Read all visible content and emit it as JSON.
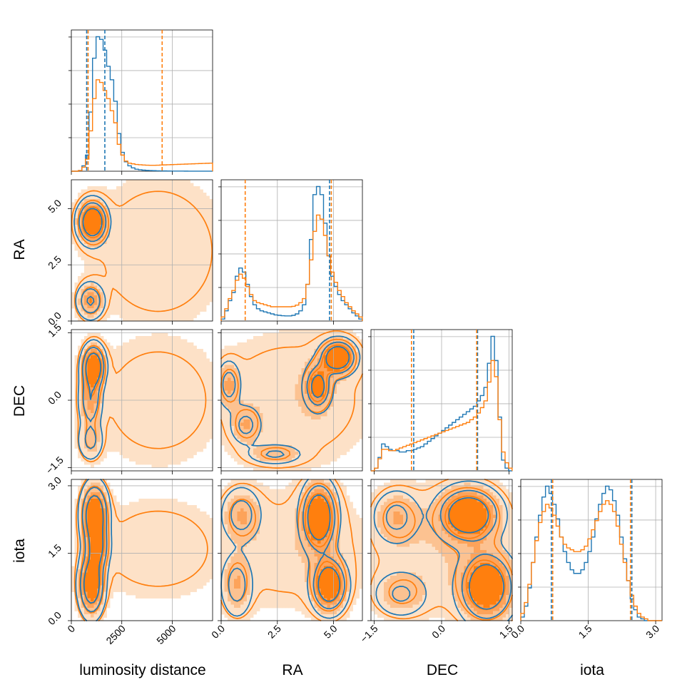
{
  "figure": {
    "type": "corner_plot",
    "colors": {
      "posterior_a": "#1f77b4",
      "posterior_b": "#ff7f0e",
      "fill_levels_b": [
        "#fde1c7",
        "#fcc291",
        "#fda35a",
        "#ff7f0e"
      ]
    }
  },
  "chart_data": [
    {
      "type": "histogram",
      "panel": "luminosity distance",
      "xlim": [
        0,
        7000
      ],
      "bin_width": 175,
      "series": [
        {
          "name": "",
          "color": "#1f77b4",
          "values": [
            0,
            0,
            0.5,
            4,
            12,
            44,
            84,
            100,
            98,
            90,
            78,
            68,
            52,
            28,
            14,
            7,
            4,
            2.5,
            1.5,
            1.1,
            0.8,
            0.6,
            0.5,
            0.4,
            0.3,
            0.25,
            0.2,
            0.15,
            0.1,
            0.1,
            0.1,
            0.08,
            0.06,
            0.05,
            0.05,
            0.04,
            0.03,
            0.03,
            0.02,
            0.02
          ]
        },
        {
          "name": "",
          "color": "#ff7f0e",
          "values": [
            0,
            0,
            0.5,
            3,
            9,
            30,
            54,
            68,
            66,
            60,
            54,
            45,
            36,
            20,
            12,
            7.5,
            6,
            5.5,
            5,
            4.8,
            4.6,
            4.5,
            4.4,
            4.4,
            4.5,
            4.6,
            4.7,
            4.8,
            4.9,
            5,
            5.1,
            5.2,
            5.3,
            5.4,
            5.5,
            5.6,
            5.7,
            5.8,
            5.9,
            6
          ]
        }
      ],
      "quantiles": [
        {
          "color": "#1f77b4",
          "values": [
            760,
            1660
          ]
        },
        {
          "color": "#ff7f0e",
          "values": [
            830,
            4500
          ]
        }
      ]
    },
    {
      "type": "histogram",
      "panel": "RA",
      "xlim": [
        0,
        6.283
      ],
      "bin_width": 0.157,
      "series": [
        {
          "name": "",
          "color": "#1f77b4",
          "values": [
            1,
            5,
            10,
            14,
            22,
            26,
            24,
            18,
            12,
            8,
            6,
            5,
            4.5,
            4,
            3.5,
            3,
            2.8,
            2.6,
            2.5,
            2.5,
            2.8,
            3.5,
            5,
            8,
            18,
            40,
            62,
            66,
            62,
            48,
            32,
            22,
            17,
            13,
            10,
            8,
            6,
            4,
            2.5,
            1
          ]
        },
        {
          "name": "",
          "color": "#ff7f0e",
          "values": [
            2,
            6,
            11,
            15,
            20,
            23,
            21,
            17,
            13,
            10,
            9,
            8.5,
            8,
            7.5,
            7,
            7,
            7,
            7,
            7,
            7,
            7.2,
            7.8,
            9,
            11,
            18,
            30,
            44,
            52,
            50,
            42,
            32,
            24,
            19,
            15,
            12,
            9,
            7,
            5,
            3.5,
            2
          ]
        }
      ],
      "quantiles": [
        {
          "color": "#1f77b4",
          "values": [
            4.82
          ]
        },
        {
          "color": "#ff7f0e",
          "values": [
            1.07,
            4.9
          ]
        }
      ]
    },
    {
      "type": "histogram",
      "panel": "DEC",
      "xlim": [
        -1.571,
        1.571
      ],
      "bin_width": 0.0785,
      "series": [
        {
          "name": "",
          "color": "#1f77b4",
          "values": [
            0,
            2,
            10,
            20,
            18,
            16,
            15,
            15,
            14,
            14,
            15,
            15,
            16,
            17,
            18,
            20,
            22,
            24,
            26,
            28,
            30,
            32,
            34,
            36,
            38,
            40,
            42,
            44,
            46,
            48,
            52,
            56,
            62,
            80,
            100,
            82,
            40,
            8,
            2,
            0
          ]
        },
        {
          "name": "",
          "color": "#ff7f0e",
          "values": [
            0,
            2,
            9,
            16,
            16,
            15,
            15,
            16,
            17,
            18,
            19,
            20,
            21,
            22,
            23,
            24,
            25,
            26,
            27,
            28,
            29,
            30,
            31,
            32,
            33,
            34,
            35,
            36,
            38,
            40,
            43,
            47,
            52,
            66,
            82,
            70,
            38,
            14,
            6,
            2
          ]
        }
      ],
      "quantiles": [
        {
          "color": "#1f77b4",
          "values": [
            -0.62,
            0.8
          ]
        },
        {
          "color": "#ff7f0e",
          "values": [
            -0.67,
            0.78
          ]
        }
      ]
    },
    {
      "type": "histogram",
      "panel": "iota",
      "xlim": [
        0,
        3.1416
      ],
      "bin_width": 0.0785,
      "series": [
        {
          "name": "",
          "color": "#1f77b4",
          "values": [
            2,
            8,
            18,
            32,
            46,
            58,
            68,
            74,
            70,
            64,
            56,
            46,
            38,
            32,
            28,
            26,
            26,
            28,
            32,
            38,
            46,
            56,
            64,
            70,
            74,
            72,
            66,
            58,
            46,
            34,
            22,
            12,
            6,
            2,
            1,
            0,
            0,
            0,
            0,
            0
          ]
        },
        {
          "name": "",
          "color": "#ff7f0e",
          "values": [
            4,
            10,
            20,
            32,
            44,
            54,
            60,
            64,
            62,
            58,
            52,
            46,
            42,
            40,
            39,
            38,
            38,
            39,
            41,
            45,
            50,
            55,
            60,
            64,
            66,
            64,
            60,
            52,
            42,
            32,
            22,
            14,
            8,
            4,
            2,
            1,
            0,
            0,
            0,
            0
          ]
        }
      ],
      "quantiles": [
        {
          "color": "#1f77b4",
          "values": [
            0.68,
            2.47
          ]
        },
        {
          "color": "#ff7f0e",
          "values": [
            0.71,
            2.44
          ]
        }
      ]
    },
    {
      "type": "contour",
      "x": "luminosity distance",
      "y": "RA",
      "xlim": [
        0,
        7000
      ],
      "ylim": [
        0,
        6.283
      ],
      "levels": [
        0.39,
        0.86,
        0.99
      ],
      "series": [
        {
          "name": "",
          "color": "#1f77b4",
          "modes": [
            {
              "x": 1050,
              "y": 4.4,
              "sx": 420,
              "sy": 0.55,
              "amp": 1.0
            },
            {
              "x": 950,
              "y": 0.9,
              "sx": 380,
              "sy": 0.45,
              "amp": 0.6
            }
          ]
        },
        {
          "name": "",
          "color": "#ff7f0e",
          "modes": [
            {
              "x": 1050,
              "y": 4.4,
              "sx": 450,
              "sy": 0.6,
              "amp": 1.0
            },
            {
              "x": 950,
              "y": 0.9,
              "sx": 400,
              "sy": 0.5,
              "amp": 0.55
            },
            {
              "x": 4300,
              "y": 3.1,
              "sx": 2200,
              "sy": 2.2,
              "amp": 0.22
            }
          ]
        }
      ]
    },
    {
      "type": "contour",
      "x": "luminosity distance",
      "y": "DEC",
      "xlim": [
        0,
        7000
      ],
      "ylim": [
        -1.571,
        1.571
      ],
      "levels": [
        0.39,
        0.86,
        0.99
      ],
      "series": [
        {
          "name": "",
          "color": "#1f77b4",
          "modes": [
            {
              "x": 1100,
              "y": 0.75,
              "sx": 330,
              "sy": 0.28,
              "amp": 1.0
            },
            {
              "x": 950,
              "y": 0.0,
              "sx": 330,
              "sy": 0.35,
              "amp": 0.55
            },
            {
              "x": 950,
              "y": -0.9,
              "sx": 350,
              "sy": 0.25,
              "amp": 0.4
            }
          ]
        },
        {
          "name": "",
          "color": "#ff7f0e",
          "modes": [
            {
              "x": 1100,
              "y": 0.75,
              "sx": 350,
              "sy": 0.3,
              "amp": 1.0
            },
            {
              "x": 950,
              "y": 0.0,
              "sx": 350,
              "sy": 0.38,
              "amp": 0.5
            },
            {
              "x": 950,
              "y": -0.9,
              "sx": 360,
              "sy": 0.28,
              "amp": 0.35
            },
            {
              "x": 4300,
              "y": 0.0,
              "sx": 2200,
              "sy": 1.0,
              "amp": 0.2
            }
          ]
        }
      ]
    },
    {
      "type": "contour",
      "x": "RA",
      "y": "DEC",
      "xlim": [
        0,
        6.283
      ],
      "ylim": [
        -1.571,
        1.571
      ],
      "levels": [
        0.39,
        0.86,
        0.99
      ],
      "series": [
        {
          "name": "",
          "color": "#1f77b4",
          "modes": [
            {
              "x": 5.2,
              "y": 0.95,
              "sx": 0.45,
              "sy": 0.22,
              "amp": 1.0
            },
            {
              "x": 4.3,
              "y": 0.3,
              "sx": 0.35,
              "sy": 0.3,
              "amp": 0.75
            },
            {
              "x": 0.35,
              "y": 0.35,
              "sx": 0.3,
              "sy": 0.3,
              "amp": 0.45
            },
            {
              "x": 1.1,
              "y": -0.55,
              "sx": 0.4,
              "sy": 0.25,
              "amp": 0.4
            },
            {
              "x": 2.4,
              "y": -1.2,
              "sx": 0.7,
              "sy": 0.13,
              "amp": 0.35
            }
          ]
        },
        {
          "name": "",
          "color": "#ff7f0e",
          "modes": [
            {
              "x": 5.2,
              "y": 0.95,
              "sx": 0.5,
              "sy": 0.25,
              "amp": 1.0
            },
            {
              "x": 4.3,
              "y": 0.3,
              "sx": 0.38,
              "sy": 0.32,
              "amp": 0.7
            },
            {
              "x": 0.35,
              "y": 0.35,
              "sx": 0.33,
              "sy": 0.32,
              "amp": 0.42
            },
            {
              "x": 1.1,
              "y": -0.55,
              "sx": 0.42,
              "sy": 0.27,
              "amp": 0.38
            },
            {
              "x": 2.4,
              "y": -1.2,
              "sx": 0.75,
              "sy": 0.15,
              "amp": 0.33
            },
            {
              "x": 3.1,
              "y": 0.0,
              "sx": 2.4,
              "sy": 1.0,
              "amp": 0.22
            }
          ]
        }
      ]
    },
    {
      "type": "contour",
      "x": "luminosity distance",
      "y": "iota",
      "xlim": [
        0,
        7000
      ],
      "ylim": [
        0,
        3.1416
      ],
      "levels": [
        0.39,
        0.86,
        0.99
      ],
      "series": [
        {
          "name": "",
          "color": "#1f77b4",
          "modes": [
            {
              "x": 1150,
              "y": 2.35,
              "sx": 380,
              "sy": 0.4,
              "amp": 1.0
            },
            {
              "x": 1000,
              "y": 0.8,
              "sx": 360,
              "sy": 0.4,
              "amp": 0.95
            },
            {
              "x": 1300,
              "y": 1.6,
              "sx": 350,
              "sy": 0.3,
              "amp": 0.55
            }
          ]
        },
        {
          "name": "",
          "color": "#ff7f0e",
          "modes": [
            {
              "x": 1150,
              "y": 2.35,
              "sx": 400,
              "sy": 0.42,
              "amp": 1.0
            },
            {
              "x": 1000,
              "y": 0.8,
              "sx": 380,
              "sy": 0.42,
              "amp": 0.95
            },
            {
              "x": 1300,
              "y": 1.6,
              "sx": 360,
              "sy": 0.32,
              "amp": 0.5
            },
            {
              "x": 4300,
              "y": 1.6,
              "sx": 2200,
              "sy": 0.75,
              "amp": 0.2
            }
          ]
        }
      ]
    },
    {
      "type": "contour",
      "x": "RA",
      "y": "iota",
      "xlim": [
        0,
        6.283
      ],
      "ylim": [
        0,
        3.1416
      ],
      "levels": [
        0.39,
        0.86,
        0.99
      ],
      "series": [
        {
          "name": "",
          "color": "#1f77b4",
          "modes": [
            {
              "x": 4.35,
              "y": 2.3,
              "sx": 0.45,
              "sy": 0.45,
              "amp": 1.0
            },
            {
              "x": 4.8,
              "y": 0.8,
              "sx": 0.45,
              "sy": 0.35,
              "amp": 0.95
            },
            {
              "x": 0.9,
              "y": 2.35,
              "sx": 0.5,
              "sy": 0.35,
              "amp": 0.45
            },
            {
              "x": 0.7,
              "y": 0.8,
              "sx": 0.4,
              "sy": 0.4,
              "amp": 0.45
            }
          ]
        },
        {
          "name": "",
          "color": "#ff7f0e",
          "modes": [
            {
              "x": 4.35,
              "y": 2.3,
              "sx": 0.5,
              "sy": 0.48,
              "amp": 1.0
            },
            {
              "x": 4.8,
              "y": 0.8,
              "sx": 0.48,
              "sy": 0.38,
              "amp": 0.95
            },
            {
              "x": 0.9,
              "y": 2.35,
              "sx": 0.55,
              "sy": 0.38,
              "amp": 0.42
            },
            {
              "x": 0.7,
              "y": 0.8,
              "sx": 0.42,
              "sy": 0.42,
              "amp": 0.42
            },
            {
              "x": 3.1,
              "y": 1.6,
              "sx": 2.4,
              "sy": 0.9,
              "amp": 0.2
            }
          ]
        }
      ]
    },
    {
      "type": "contour",
      "x": "DEC",
      "y": "iota",
      "xlim": [
        -1.571,
        1.571
      ],
      "ylim": [
        0,
        3.1416
      ],
      "levels": [
        0.39,
        0.86,
        0.99
      ],
      "series": [
        {
          "name": "",
          "color": "#1f77b4",
          "modes": [
            {
              "x": 0.6,
              "y": 2.35,
              "sx": 0.4,
              "sy": 0.35,
              "amp": 1.0
            },
            {
              "x": 1.0,
              "y": 0.75,
              "sx": 0.35,
              "sy": 0.45,
              "amp": 1.0
            },
            {
              "x": -1.0,
              "y": 2.3,
              "sx": 0.3,
              "sy": 0.35,
              "amp": 0.4
            },
            {
              "x": -0.9,
              "y": 0.6,
              "sx": 0.35,
              "sy": 0.3,
              "amp": 0.35
            }
          ]
        },
        {
          "name": "",
          "color": "#ff7f0e",
          "modes": [
            {
              "x": 0.6,
              "y": 2.35,
              "sx": 0.42,
              "sy": 0.38,
              "amp": 1.0
            },
            {
              "x": 1.0,
              "y": 0.75,
              "sx": 0.38,
              "sy": 0.48,
              "amp": 1.0
            },
            {
              "x": -1.0,
              "y": 2.3,
              "sx": 0.32,
              "sy": 0.38,
              "amp": 0.4
            },
            {
              "x": -0.9,
              "y": 0.6,
              "sx": 0.38,
              "sy": 0.32,
              "amp": 0.35
            },
            {
              "x": 0.0,
              "y": 1.6,
              "sx": 1.1,
              "sy": 0.9,
              "amp": 0.22
            }
          ]
        }
      ]
    }
  ],
  "axes": {
    "luminosity_distance": {
      "label": "luminosity distance",
      "ticks": [
        0,
        2500,
        5000
      ],
      "tick_labels": [
        "0",
        "2500",
        "5000"
      ]
    },
    "ra": {
      "label": "RA",
      "ticks": [
        0,
        2.5,
        5.0
      ],
      "tick_labels": [
        "0.0",
        "2.5",
        "5.0"
      ]
    },
    "dec": {
      "label": "DEC",
      "ticks": [
        -1.5,
        0,
        1.5
      ],
      "tick_labels": [
        "−1.5",
        "0.0",
        "1.5"
      ]
    },
    "iota": {
      "label": "iota",
      "ticks": [
        0,
        1.5,
        3.0
      ],
      "tick_labels": [
        "0.0",
        "1.5",
        "3.0"
      ]
    }
  }
}
